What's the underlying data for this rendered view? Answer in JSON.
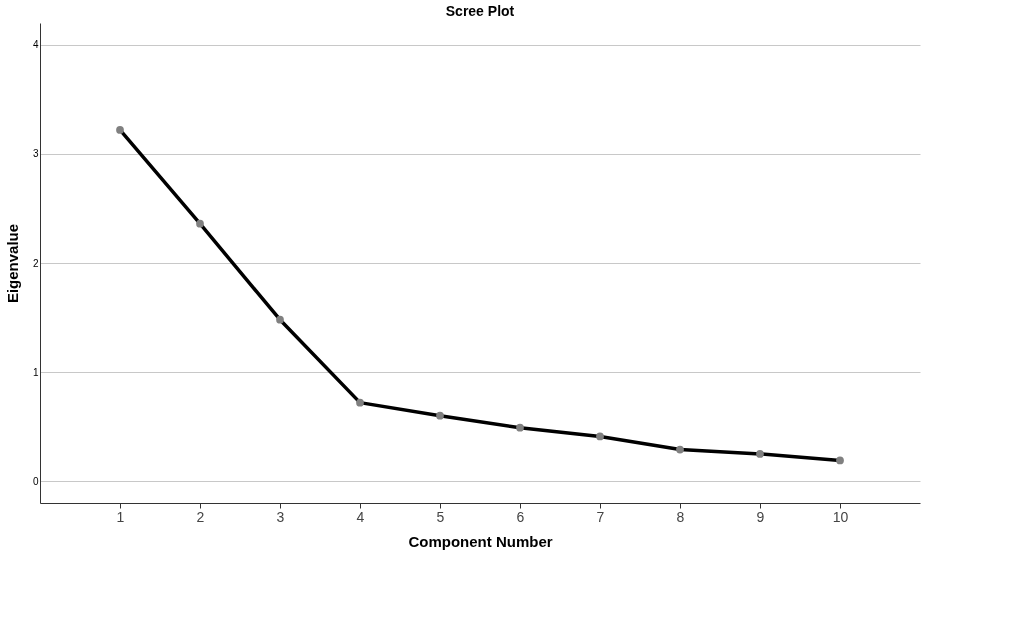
{
  "chart_data": {
    "type": "line",
    "title": "Scree Plot",
    "xlabel": "Component Number",
    "ylabel": "Eigenvalue",
    "categories": [
      "1",
      "2",
      "3",
      "4",
      "5",
      "6",
      "7",
      "8",
      "9",
      "10"
    ],
    "series": [
      {
        "color": "#000000",
        "values": [
          3.22,
          2.36,
          1.48,
          0.72,
          0.6,
          0.49,
          0.41,
          0.29,
          0.25,
          0.19
        ]
      }
    ],
    "ylim": [
      -0.2,
      4.2
    ],
    "yticks": [
      0,
      1,
      2,
      3,
      4
    ],
    "grid": "y",
    "marker": "circle",
    "line_style": "solid"
  }
}
